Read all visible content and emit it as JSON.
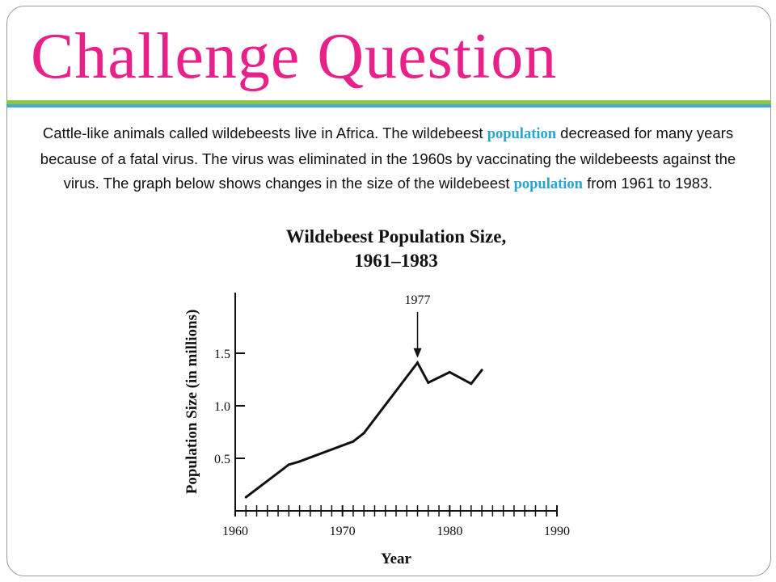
{
  "slide": {
    "title": "Challenge Question",
    "paragraph": {
      "part1": "Cattle-like animals called wildebeests live in Africa. The wildebeest ",
      "highlight1": "population",
      "part2": " decreased for many years because of a fatal virus. The virus was eliminated in the 1960s by vaccinating the wildebeests against the virus. The graph below shows changes in the size of the wildebeest ",
      "highlight2": "population",
      "part3": " from 1961 to 1983."
    }
  },
  "colors": {
    "title": "#e8218a",
    "highlight": "#2aa5cf",
    "accent_green": "#8dc63f",
    "accent_blue": "#4aa6d3"
  },
  "chart_data": {
    "type": "line",
    "title": [
      "Wildebeest Population Size,",
      "1961–1983"
    ],
    "xlabel": "Year",
    "ylabel": "Population Size (in millions)",
    "xlim": [
      1960,
      1990
    ],
    "ylim": [
      0,
      2.0
    ],
    "x_ticks": [
      1960,
      1970,
      1980,
      1990
    ],
    "x_minor_step": 1,
    "y_ticks": [
      0.5,
      1.0,
      1.5
    ],
    "y_tick_labels": [
      "0.5",
      "1.0",
      "1.5"
    ],
    "grid": false,
    "series": [
      {
        "x": [
          1961,
          1965,
          1966,
          1971,
          1972,
          1977,
          1978,
          1980,
          1982,
          1983
        ],
        "y": [
          0.13,
          0.44,
          0.47,
          0.66,
          0.74,
          1.41,
          1.22,
          1.32,
          1.21,
          1.34
        ]
      }
    ],
    "annotations": [
      {
        "label": "1977",
        "x": 1977,
        "y": 1.41,
        "arrow": "down"
      }
    ]
  }
}
